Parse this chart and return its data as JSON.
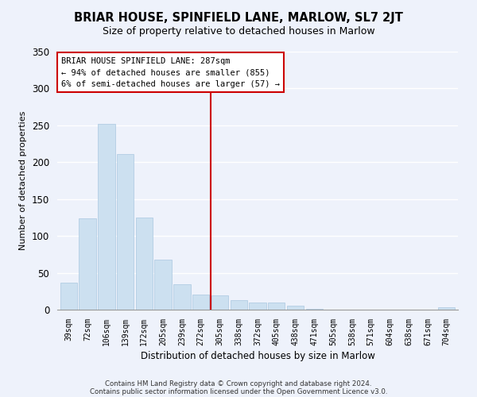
{
  "title": "BRIAR HOUSE, SPINFIELD LANE, MARLOW, SL7 2JT",
  "subtitle": "Size of property relative to detached houses in Marlow",
  "xlabel": "Distribution of detached houses by size in Marlow",
  "ylabel": "Number of detached properties",
  "bar_labels": [
    "39sqm",
    "72sqm",
    "106sqm",
    "139sqm",
    "172sqm",
    "205sqm",
    "239sqm",
    "272sqm",
    "305sqm",
    "338sqm",
    "372sqm",
    "405sqm",
    "438sqm",
    "471sqm",
    "505sqm",
    "538sqm",
    "571sqm",
    "604sqm",
    "638sqm",
    "671sqm",
    "704sqm"
  ],
  "bar_values": [
    37,
    124,
    252,
    211,
    125,
    68,
    34,
    21,
    19,
    13,
    10,
    10,
    5,
    1,
    0,
    0,
    0,
    0,
    0,
    0,
    3
  ],
  "bar_color": "#cce0f0",
  "bar_edge_color": "#aac8e0",
  "vline_x": 7.5,
  "vline_color": "#cc0000",
  "ylim": [
    0,
    350
  ],
  "yticks": [
    0,
    50,
    100,
    150,
    200,
    250,
    300,
    350
  ],
  "annotation_title": "BRIAR HOUSE SPINFIELD LANE: 287sqm",
  "annotation_line1": "← 94% of detached houses are smaller (855)",
  "annotation_line2": "6% of semi-detached houses are larger (57) →",
  "annotation_box_color": "#ffffff",
  "annotation_box_edge": "#cc0000",
  "footnote1": "Contains HM Land Registry data © Crown copyright and database right 2024.",
  "footnote2": "Contains public sector information licensed under the Open Government Licence v3.0.",
  "background_color": "#eef2fb",
  "plot_background": "#eef2fb",
  "title_fontsize": 10.5,
  "subtitle_fontsize": 9
}
